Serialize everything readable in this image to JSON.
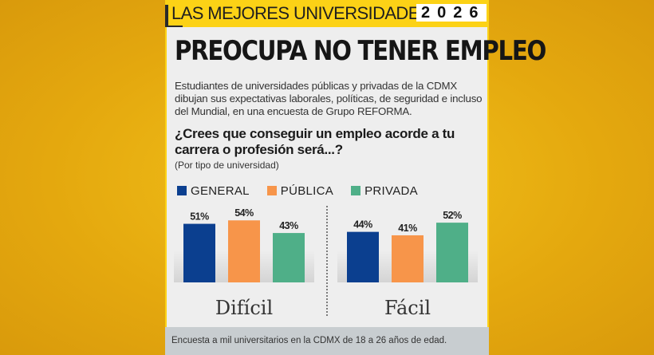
{
  "banner": {
    "title": "LAS MEJORES UNIVERSIDADES",
    "year": "2026"
  },
  "headline": "PREOCUPA NO TENER EMPLEO",
  "intro": "Estudiantes de universidades públicas y privadas de la CDMX dibujan sus expectativas laborales, políticas, de seguridad e incluso del Mundial, en una encuesta de Grupo REFORMA.",
  "question": "¿Crees que conseguir un empleo acorde a tu carrera o profesión será...?",
  "question_sub": "(Por tipo de universidad)",
  "footer": "Encuesta a mil universitarios en la CDMX de 18 a 26 años de edad.",
  "chart_data": {
    "type": "bar",
    "title": "¿Crees que conseguir un empleo acorde a tu carrera o profesión será...?",
    "subtitle": "(Por tipo de universidad)",
    "categories": [
      "Difícil",
      "Fácil"
    ],
    "series": [
      {
        "name": "GENERAL",
        "color": "#0b3f8f",
        "values": [
          51,
          44
        ]
      },
      {
        "name": "PÚBLICA",
        "color": "#f7954a",
        "values": [
          54,
          41
        ]
      },
      {
        "name": "PRIVADA",
        "color": "#4faf88",
        "values": [
          43,
          52
        ]
      }
    ],
    "value_suffix": "%",
    "ylim": [
      0,
      100
    ],
    "grid": false,
    "legend": "top-left",
    "xlabel": "",
    "ylabel": ""
  }
}
